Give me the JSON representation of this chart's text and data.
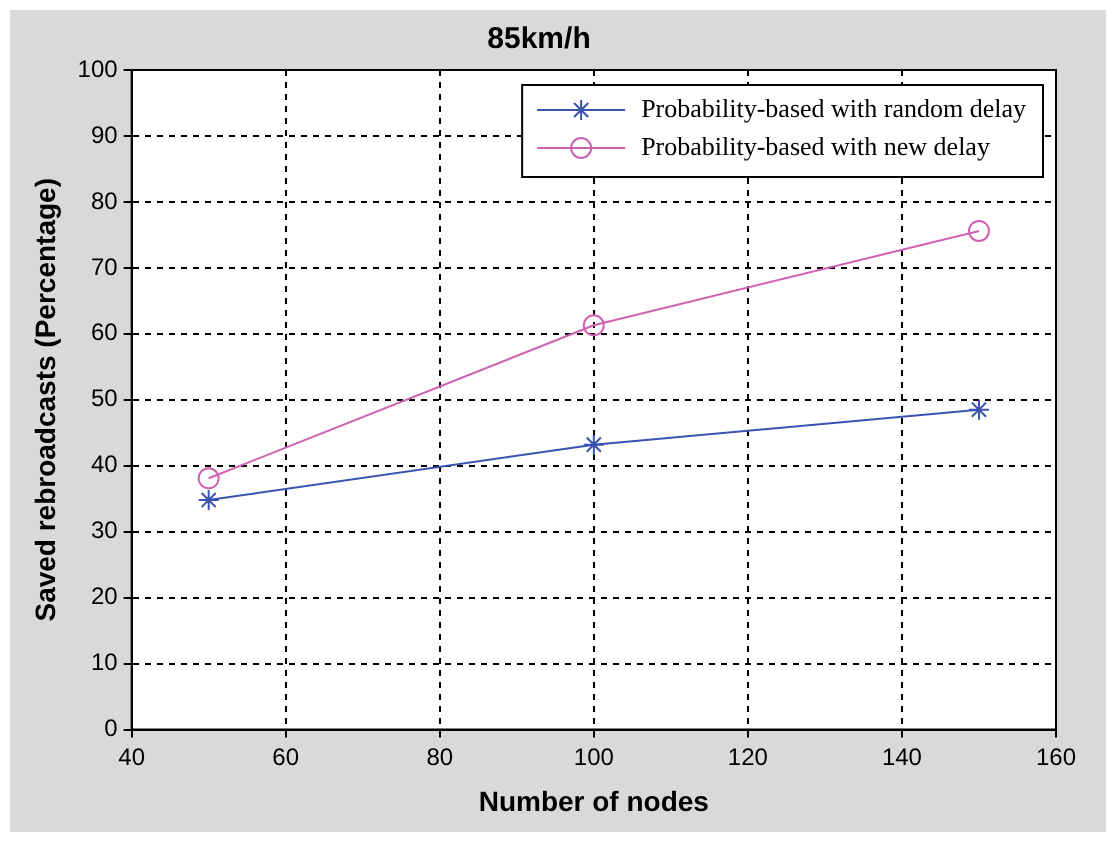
{
  "chart_data": {
    "type": "line",
    "title": "85km/h",
    "xlabel": "Number of nodes",
    "ylabel": "Saved rebroadcasts (Percentage)",
    "x": [
      50,
      100,
      150
    ],
    "series": [
      {
        "name": "Probability-based with random delay",
        "color": "#3a52b0",
        "values": [
          34.8,
          43.2,
          48.5
        ],
        "marker": "cross"
      },
      {
        "name": "Probability-based with new delay",
        "color": "#d060b0",
        "values": [
          38.1,
          61.3,
          75.6
        ],
        "marker": "circle"
      }
    ],
    "xlim": [
      40,
      160
    ],
    "xticks": [
      40,
      60,
      80,
      100,
      120,
      140,
      160
    ],
    "ylim": [
      0,
      100
    ],
    "yticks": [
      0,
      10,
      20,
      30,
      40,
      50,
      60,
      70,
      80,
      90,
      100
    ],
    "grid": true,
    "legend": "top right",
    "line_style": "solid"
  }
}
